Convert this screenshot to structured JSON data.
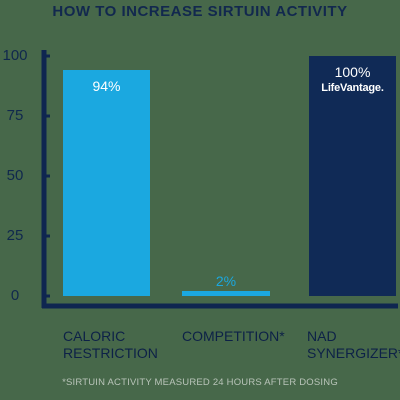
{
  "chart_data": {
    "type": "bar",
    "title": "HOW TO INCREASE SIRTUIN ACTIVITY",
    "categories": [
      "CALORIC\nRESTRICTION",
      "COMPETITION*",
      "NAD\nSYNERGIZER*"
    ],
    "values": [
      94,
      2,
      100
    ],
    "value_labels": [
      "94%",
      "2%",
      "100%"
    ],
    "bar_colors": [
      "#1ba8e0",
      "#1ba8e0",
      "#102a56"
    ],
    "value_label_colors": [
      "#ffffff",
      "#1ba8e0",
      "#ffffff"
    ],
    "yticks": [
      "0",
      "25",
      "50",
      "75",
      "100"
    ],
    "ylim": [
      0,
      100
    ],
    "brand_label": "LifeVantage.",
    "footnote": "*SIRTUIN ACTIVITY MEASURED 24 HOURS AFTER DOSING",
    "axis_color": "#0f2650"
  }
}
